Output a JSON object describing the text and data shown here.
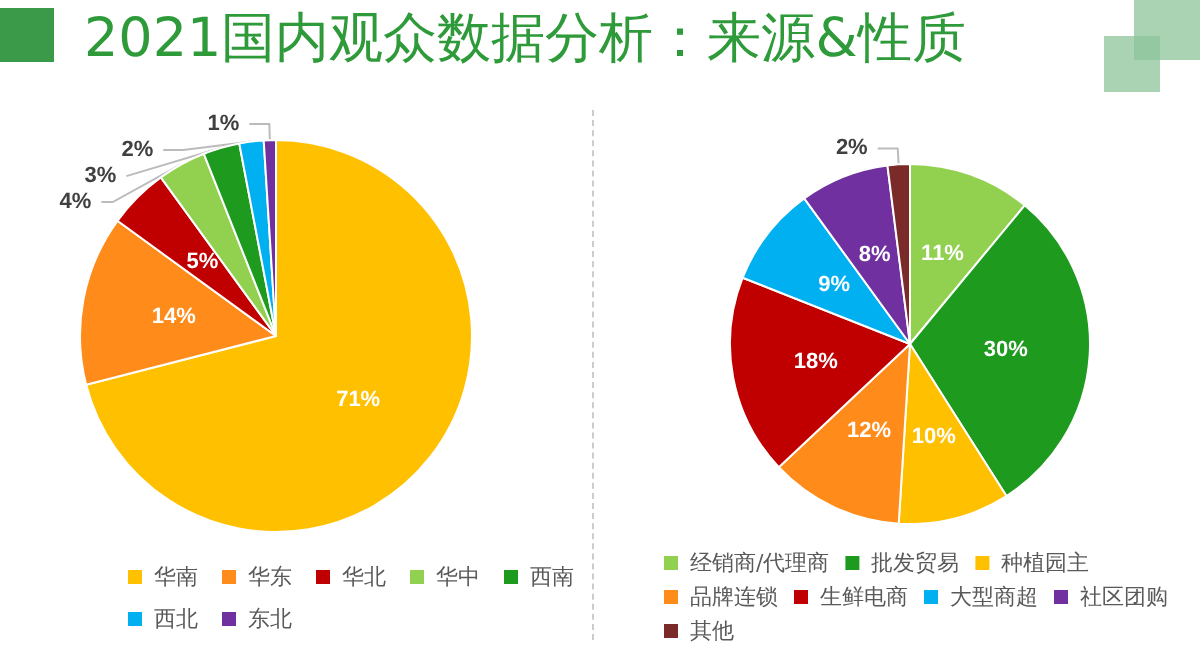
{
  "chart_data": [
    {
      "type": "pie",
      "title": "2021国内观众数据分析：来源&性质",
      "categories": [
        "华南",
        "华东",
        "华北",
        "华中",
        "西南",
        "西北",
        "东北"
      ],
      "values": [
        71,
        14,
        5,
        4,
        3,
        2,
        1
      ],
      "value_labels": [
        "71%",
        "14%",
        "5%",
        "4%",
        "3%",
        "2%",
        "1%"
      ],
      "colors": [
        "#ffc000",
        "#ff8c1a",
        "#c00000",
        "#92d050",
        "#1e9a1e",
        "#00b0f0",
        "#7030a0"
      ],
      "legend": "bottom"
    },
    {
      "type": "pie",
      "categories": [
        "经销商/代理商",
        "批发贸易",
        "种植园主",
        "品牌连锁",
        "生鲜电商",
        "大型商超",
        "社区团购",
        "其他"
      ],
      "values": [
        11,
        30,
        10,
        12,
        18,
        9,
        8,
        2
      ],
      "value_labels": [
        "11%",
        "30%",
        "10%",
        "12%",
        "18%",
        "9%",
        "8%",
        "2%"
      ],
      "colors": [
        "#92d050",
        "#1e9a1e",
        "#ffc000",
        "#ff8c1a",
        "#c00000",
        "#00b0f0",
        "#7030a0",
        "#7b2a2a"
      ],
      "legend": "bottom"
    }
  ]
}
